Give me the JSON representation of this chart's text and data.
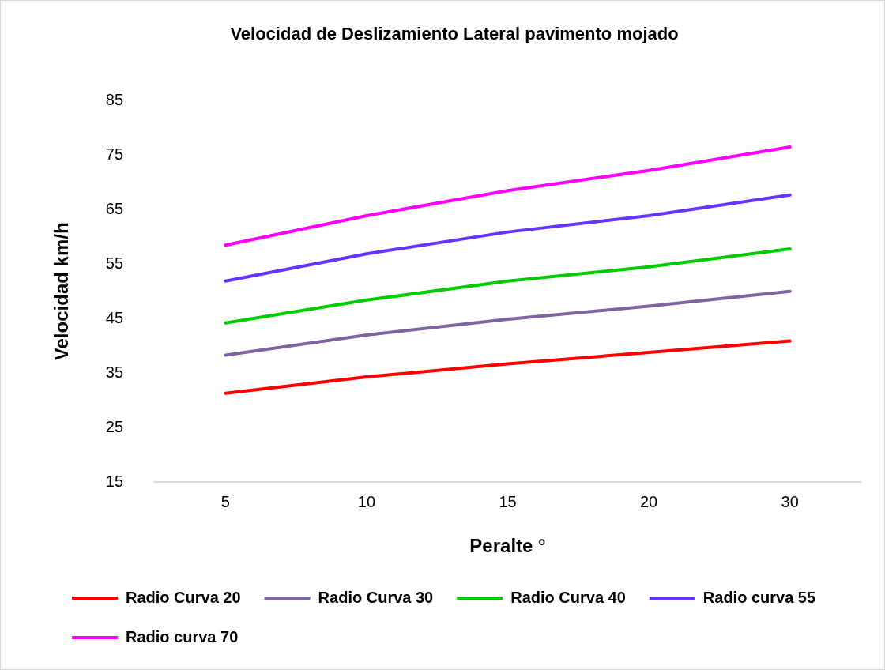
{
  "chart_data": {
    "type": "line",
    "title": "Velocidad de Deslizamiento Lateral pavimento mojado",
    "xlabel": "Peralte °",
    "ylabel": "Velocidad km/h",
    "categories": [
      "5",
      "10",
      "15",
      "20",
      "30"
    ],
    "series": [
      {
        "name": "Radio Curva 20",
        "color": "#ff0000",
        "values": [
          31.3,
          34.3,
          36.7,
          38.8,
          40.9
        ]
      },
      {
        "name": "Radio Curva 30",
        "color": "#8064a2",
        "values": [
          38.3,
          42.0,
          44.9,
          47.3,
          50.0
        ]
      },
      {
        "name": "Radio Curva 40",
        "color": "#00cc00",
        "values": [
          44.2,
          48.4,
          51.9,
          54.5,
          57.8
        ]
      },
      {
        "name": "Radio curva 55",
        "color": "#6633ff",
        "values": [
          51.9,
          56.9,
          60.9,
          63.9,
          67.7
        ]
      },
      {
        "name": "Radio curva 70",
        "color": "#ff00ff",
        "values": [
          58.5,
          63.9,
          68.5,
          72.2,
          76.5
        ]
      }
    ],
    "ylim": [
      15,
      85
    ],
    "yticks": [
      15,
      25,
      35,
      45,
      55,
      65,
      75,
      85
    ],
    "grid": false,
    "legend": "bottom",
    "marker": "none",
    "line_style": "solid"
  }
}
